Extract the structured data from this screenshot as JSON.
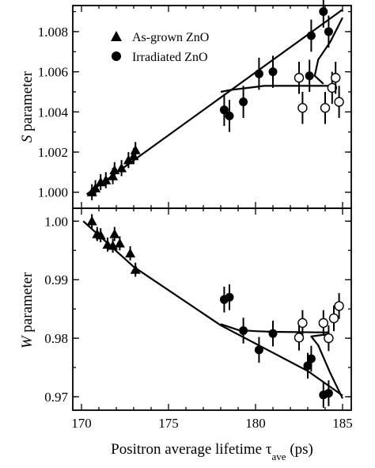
{
  "chart_data": [
    {
      "panel": "top",
      "type": "scatter",
      "ylabel_symbol": "S",
      "ylabel_rest": " parameter",
      "xlim": [
        169.5,
        185.5
      ],
      "ylim": [
        0.9992,
        1.0093
      ],
      "yticks": [
        {
          "value": 1.0,
          "label": "1.000"
        },
        {
          "value": 1.002,
          "label": "1.002"
        },
        {
          "value": 1.004,
          "label": "1.004"
        },
        {
          "value": 1.006,
          "label": "1.006"
        },
        {
          "value": 1.008,
          "label": "1.008"
        }
      ],
      "legend": [
        {
          "marker": "triangle",
          "label": "As-grown ZnO"
        },
        {
          "marker": "circle",
          "label": "Irradiated ZnO"
        }
      ],
      "series": [
        {
          "name": "As-grown ZnO",
          "marker": "triangle",
          "points": [
            {
              "x": 170.6,
              "y": 1.0,
              "err": 0.0004
            },
            {
              "x": 170.8,
              "y": 1.0002,
              "err": 0.0004
            },
            {
              "x": 171.1,
              "y": 1.0005,
              "err": 0.0004
            },
            {
              "x": 171.4,
              "y": 1.0006,
              "err": 0.0004
            },
            {
              "x": 171.8,
              "y": 1.0008,
              "err": 0.0004
            },
            {
              "x": 171.9,
              "y": 1.0011,
              "err": 0.0004
            },
            {
              "x": 172.3,
              "y": 1.0012,
              "err": 0.0004
            },
            {
              "x": 172.7,
              "y": 1.0016,
              "err": 0.0004
            },
            {
              "x": 173.0,
              "y": 1.0018,
              "err": 0.0004
            },
            {
              "x": 173.1,
              "y": 1.0021,
              "err": 0.0004
            }
          ]
        },
        {
          "name": "Irradiated ZnO",
          "marker": "circle",
          "points": [
            {
              "x": 178.2,
              "y": 1.0041,
              "err": 0.0008
            },
            {
              "x": 178.5,
              "y": 1.0038,
              "err": 0.0008
            },
            {
              "x": 179.3,
              "y": 1.0045,
              "err": 0.0008
            },
            {
              "x": 180.2,
              "y": 1.0059,
              "err": 0.0008
            },
            {
              "x": 181.0,
              "y": 1.006,
              "err": 0.0008
            },
            {
              "x": 183.1,
              "y": 1.0058,
              "err": 0.0008
            },
            {
              "x": 183.2,
              "y": 1.0078,
              "err": 0.0008
            },
            {
              "x": 183.9,
              "y": 1.009,
              "err": 0.0008
            },
            {
              "x": 184.2,
              "y": 1.008,
              "err": 0.0008
            }
          ]
        },
        {
          "name": "",
          "marker": "open-circle",
          "points": [
            {
              "x": 182.5,
              "y": 1.0057,
              "err": 0.0008
            },
            {
              "x": 182.7,
              "y": 1.0042,
              "err": 0.0008
            },
            {
              "x": 184.0,
              "y": 1.0042,
              "err": 0.0008
            },
            {
              "x": 184.4,
              "y": 1.0052,
              "err": 0.0008
            },
            {
              "x": 184.6,
              "y": 1.0057,
              "err": 0.0008
            },
            {
              "x": 184.8,
              "y": 1.0045,
              "err": 0.0008
            }
          ]
        }
      ],
      "curves": [
        [
          [
            170.3,
            0.9999
          ],
          [
            185.0,
            1.0091
          ]
        ],
        [
          [
            178.0,
            1.005
          ],
          [
            178.6,
            1.0051
          ],
          [
            179.6,
            1.0052
          ],
          [
            180.5,
            1.0053
          ],
          [
            182.0,
            1.0053
          ],
          [
            183.0,
            1.0053
          ],
          [
            183.7,
            1.0053
          ],
          [
            184.3,
            1.0053
          ]
        ],
        [
          [
            183.9,
            1.0054
          ],
          [
            183.4,
            1.0058
          ],
          [
            183.6,
            1.0066
          ],
          [
            184.3,
            1.0075
          ],
          [
            185.0,
            1.0087
          ]
        ]
      ]
    },
    {
      "panel": "bottom",
      "type": "scatter",
      "ylabel_symbol": "W",
      "ylabel_rest": " parameter",
      "xlabel_main": "Positron average lifetime τ",
      "xlabel_sub": "ave",
      "xlabel_end": " (ps)",
      "xlim": [
        169.5,
        185.5
      ],
      "ylim": [
        0.9677,
        1.0022
      ],
      "xticks": [
        {
          "value": 170,
          "label": "170"
        },
        {
          "value": 175,
          "label": "175"
        },
        {
          "value": 180,
          "label": "180"
        },
        {
          "value": 185,
          "label": "185"
        }
      ],
      "yticks": [
        {
          "value": 0.97,
          "label": "0.97"
        },
        {
          "value": 0.98,
          "label": "0.98"
        },
        {
          "value": 0.99,
          "label": "0.99"
        },
        {
          "value": 1.0,
          "label": "1.00"
        }
      ],
      "series": [
        {
          "name": "As-grown ZnO",
          "marker": "triangle",
          "points": [
            {
              "x": 170.6,
              "y": 1.0,
              "err": 0.0012
            },
            {
              "x": 170.9,
              "y": 0.9978,
              "err": 0.0012
            },
            {
              "x": 171.1,
              "y": 0.9976,
              "err": 0.0012
            },
            {
              "x": 171.5,
              "y": 0.996,
              "err": 0.0012
            },
            {
              "x": 171.8,
              "y": 0.9958,
              "err": 0.0012
            },
            {
              "x": 171.9,
              "y": 0.9978,
              "err": 0.0012
            },
            {
              "x": 172.2,
              "y": 0.9962,
              "err": 0.0012
            },
            {
              "x": 172.8,
              "y": 0.9945,
              "err": 0.0012
            },
            {
              "x": 173.1,
              "y": 0.9917,
              "err": 0.0012
            }
          ]
        },
        {
          "name": "Irradiated ZnO",
          "marker": "circle",
          "points": [
            {
              "x": 178.2,
              "y": 0.9866,
              "err": 0.0022
            },
            {
              "x": 178.5,
              "y": 0.987,
              "err": 0.0022
            },
            {
              "x": 179.3,
              "y": 0.9813,
              "err": 0.0022
            },
            {
              "x": 180.2,
              "y": 0.978,
              "err": 0.0022
            },
            {
              "x": 181.0,
              "y": 0.9808,
              "err": 0.0022
            },
            {
              "x": 183.0,
              "y": 0.9753,
              "err": 0.0022
            },
            {
              "x": 183.2,
              "y": 0.9765,
              "err": 0.0022
            },
            {
              "x": 183.9,
              "y": 0.9703,
              "err": 0.0022
            },
            {
              "x": 184.2,
              "y": 0.9706,
              "err": 0.0022
            }
          ]
        },
        {
          "name": "",
          "marker": "open-circle",
          "points": [
            {
              "x": 182.5,
              "y": 0.9801,
              "err": 0.0022
            },
            {
              "x": 182.7,
              "y": 0.9826,
              "err": 0.0022
            },
            {
              "x": 183.9,
              "y": 0.9826,
              "err": 0.0022
            },
            {
              "x": 184.2,
              "y": 0.98,
              "err": 0.0022
            },
            {
              "x": 184.5,
              "y": 0.9834,
              "err": 0.0022
            },
            {
              "x": 184.8,
              "y": 0.9855,
              "err": 0.0022
            }
          ]
        }
      ],
      "curves": [
        [
          [
            170.1,
            1.0
          ],
          [
            173.0,
            0.9922
          ],
          [
            178.0,
            0.9822
          ],
          [
            183.0,
            0.9744
          ],
          [
            185.0,
            0.9702
          ]
        ],
        [
          [
            178.0,
            0.9824
          ],
          [
            179.0,
            0.9814
          ],
          [
            180.0,
            0.9812
          ],
          [
            181.0,
            0.9811
          ],
          [
            183.5,
            0.981
          ],
          [
            184.2,
            0.981
          ]
        ],
        [
          [
            184.2,
            0.9807
          ],
          [
            183.2,
            0.9803
          ],
          [
            183.6,
            0.9788
          ],
          [
            184.3,
            0.974
          ],
          [
            185.0,
            0.9697
          ]
        ]
      ]
    }
  ]
}
